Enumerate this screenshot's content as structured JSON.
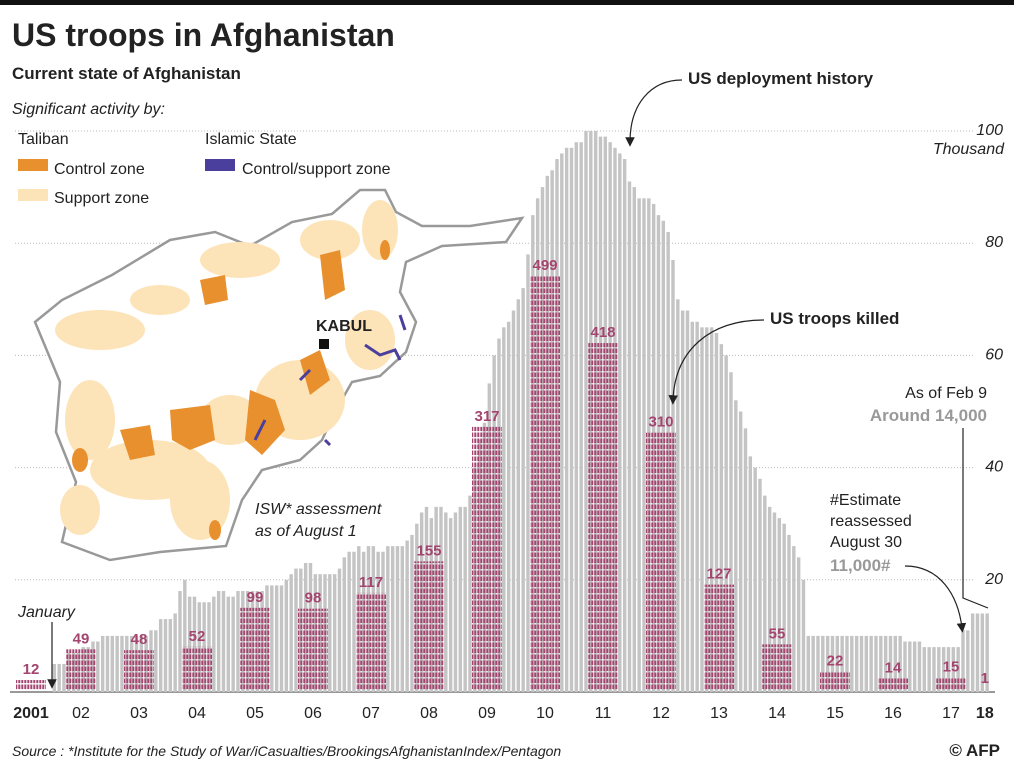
{
  "title": "US troops in Afghanistan",
  "subtitle": "Current state of Afghanistan",
  "legend": {
    "heading": "Significant activity by:",
    "taliban": "Taliban",
    "taliban_control": "Control zone",
    "taliban_support": "Support zone",
    "islamic_state": "Islamic State",
    "is_zone": "Control/support zone"
  },
  "map": {
    "capital": "KABUL",
    "note": [
      "ISW* assessment",
      "as of August 1"
    ]
  },
  "chart_data": {
    "type": "bar",
    "troops_label": "US deployment history",
    "killed_label": "US troops killed",
    "categories": [
      "2001",
      "02",
      "03",
      "04",
      "05",
      "06",
      "07",
      "08",
      "09",
      "10",
      "11",
      "12",
      "13",
      "14",
      "15",
      "16",
      "17",
      "18"
    ],
    "troops": [
      [
        null,
        null,
        null,
        null,
        null,
        null,
        null,
        null,
        null,
        null,
        null,
        null
      ],
      [
        5,
        5,
        5,
        7,
        7,
        7,
        8,
        8,
        9,
        9,
        10,
        10
      ],
      [
        10,
        10,
        10,
        10,
        10,
        10,
        10,
        10,
        11,
        11,
        13,
        13
      ],
      [
        13,
        14,
        18,
        20,
        17,
        17,
        16,
        16,
        16,
        17,
        18,
        18
      ],
      [
        17,
        17,
        18,
        18,
        18,
        18,
        18,
        18,
        19,
        19,
        19,
        19
      ],
      [
        20,
        21,
        22,
        22,
        23,
        23,
        21,
        21,
        21,
        21,
        21,
        22
      ],
      [
        24,
        25,
        25,
        26,
        25,
        26,
        26,
        25,
        25,
        26,
        26,
        26
      ],
      [
        26,
        27,
        28,
        30,
        32,
        33,
        31,
        33,
        33,
        32,
        31,
        32
      ],
      [
        33,
        33,
        35,
        40,
        45,
        48,
        55,
        60,
        63,
        65,
        66,
        68
      ],
      [
        70,
        72,
        78,
        85,
        88,
        90,
        92,
        93,
        95,
        96,
        97,
        97
      ],
      [
        98,
        98,
        100,
        100,
        100,
        99,
        99,
        98,
        97,
        96,
        95,
        91
      ],
      [
        90,
        88,
        88,
        88,
        87,
        85,
        84,
        82,
        77,
        70,
        68,
        68
      ],
      [
        66,
        66,
        65,
        65,
        65,
        64,
        62,
        60,
        57,
        52,
        50,
        47
      ],
      [
        42,
        40,
        38,
        35,
        33,
        32,
        31,
        30,
        28,
        26,
        24,
        20
      ],
      [
        10,
        10,
        10,
        10,
        10,
        10,
        10,
        10,
        10,
        10,
        10,
        10
      ],
      [
        10,
        10,
        10,
        10,
        10,
        10,
        10,
        10,
        9,
        9,
        9,
        9
      ],
      [
        8,
        8,
        8,
        8,
        8,
        8,
        8,
        8,
        11,
        11,
        14,
        14
      ],
      [
        14,
        14
      ]
    ],
    "troops_color": "#c4c4c4",
    "killed": [
      12,
      49,
      48,
      52,
      99,
      98,
      117,
      155,
      317,
      499,
      418,
      310,
      127,
      55,
      22,
      14,
      15,
      1
    ],
    "killed_color": "#a3456f",
    "ylim": [
      0,
      100
    ],
    "yticks": [
      20,
      40,
      60,
      80,
      100
    ],
    "y_label": "Thousand",
    "grid": true,
    "annotations": {
      "january": "January",
      "feb": [
        "As of Feb 9",
        "Around 14,000"
      ],
      "estimate": [
        "#Estimate",
        "reassessed",
        "August 30",
        "11,000#"
      ]
    }
  },
  "source": "Source : *Institute for the Study of War/iCasualties/BrookingsAfghanistanIndex/Pentagon",
  "credit": "© AFP"
}
